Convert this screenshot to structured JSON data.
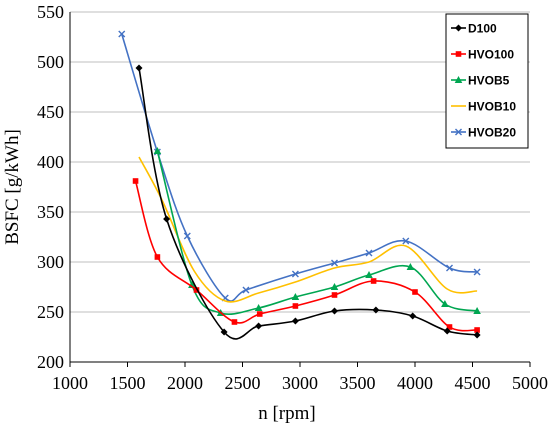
{
  "chart_data": {
    "type": "line",
    "title": "",
    "xlabel": "n [rpm]",
    "ylabel": "BSFC [g/kWh]",
    "xlim": [
      1000,
      5000
    ],
    "ylim": [
      200,
      550
    ],
    "x_ticks": [
      "1000",
      "1500",
      "2000",
      "2500",
      "3000",
      "3500",
      "4000",
      "4500",
      "5000"
    ],
    "y_ticks": [
      "200",
      "250",
      "300",
      "350",
      "400",
      "450",
      "500",
      "550"
    ],
    "grid": "horizontal",
    "legend_position": "top-right",
    "series": [
      {
        "name": "D100",
        "color": "#000000",
        "marker": "diamond",
        "points": [
          [
            1600,
            494
          ],
          [
            1840,
            343
          ],
          [
            2340,
            230
          ],
          [
            2640,
            236
          ],
          [
            2960,
            241
          ],
          [
            3300,
            251
          ],
          [
            3660,
            252
          ],
          [
            3980,
            246
          ],
          [
            4280,
            231
          ],
          [
            4540,
            227
          ]
        ]
      },
      {
        "name": "HVO100",
        "color": "#ff0000",
        "marker": "square",
        "points": [
          [
            1570,
            381
          ],
          [
            1760,
            305
          ],
          [
            2100,
            272
          ],
          [
            2430,
            240
          ],
          [
            2650,
            248
          ],
          [
            2960,
            256
          ],
          [
            3300,
            267
          ],
          [
            3640,
            281
          ],
          [
            4000,
            270
          ],
          [
            4300,
            235
          ],
          [
            4540,
            232
          ]
        ]
      },
      {
        "name": "HVOB5",
        "color": "#00a651",
        "marker": "triangle",
        "points": [
          [
            1760,
            411
          ],
          [
            2060,
            277
          ],
          [
            2310,
            249
          ],
          [
            2640,
            254
          ],
          [
            2960,
            265
          ],
          [
            3300,
            275
          ],
          [
            3600,
            287
          ],
          [
            3960,
            295
          ],
          [
            4260,
            258
          ],
          [
            4540,
            251
          ]
        ]
      },
      {
        "name": "HVOB10",
        "color": "#ffc000",
        "marker": "none",
        "points": [
          [
            1600,
            405
          ],
          [
            1800,
            362
          ],
          [
            2080,
            291
          ],
          [
            2350,
            261
          ],
          [
            2640,
            269
          ],
          [
            2960,
            280
          ],
          [
            3300,
            294
          ],
          [
            3600,
            300
          ],
          [
            3920,
            316
          ],
          [
            4280,
            273
          ],
          [
            4540,
            271
          ]
        ]
      },
      {
        "name": "HVOB20",
        "color": "#4472c4",
        "marker": "x",
        "points": [
          [
            1450,
            528
          ],
          [
            1760,
            410
          ],
          [
            2020,
            326
          ],
          [
            2350,
            264
          ],
          [
            2530,
            272
          ],
          [
            2960,
            288
          ],
          [
            3300,
            299
          ],
          [
            3600,
            309
          ],
          [
            3920,
            321
          ],
          [
            4300,
            294
          ],
          [
            4540,
            290
          ]
        ]
      }
    ]
  }
}
